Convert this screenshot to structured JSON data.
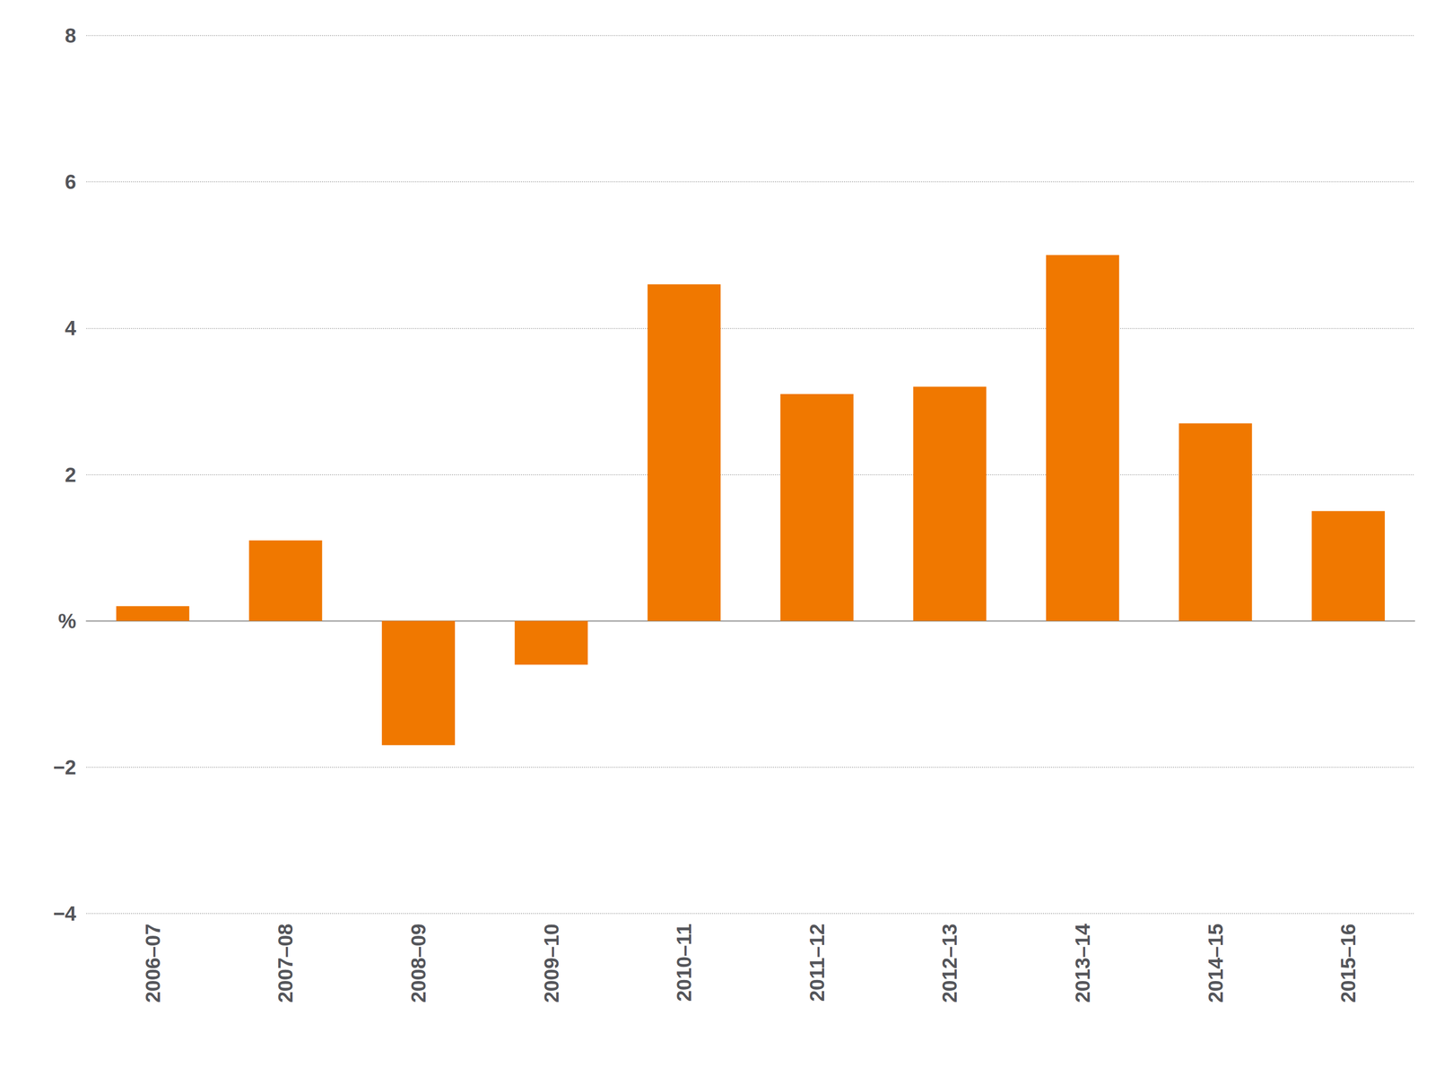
{
  "chart_data": {
    "type": "bar",
    "categories": [
      "2006–07",
      "2007–08",
      "2008–09",
      "2009–10",
      "2010–11",
      "2011–12",
      "2012–13",
      "2013–14",
      "2014–15",
      "2015–16"
    ],
    "values": [
      0.2,
      1.1,
      -1.7,
      -0.6,
      4.6,
      3.1,
      3.2,
      5.0,
      2.7,
      1.5
    ],
    "color": "#F07800",
    "ylim": [
      -4,
      8
    ],
    "yticks": [
      {
        "value": -4,
        "label": "−4"
      },
      {
        "value": -2,
        "label": "−2"
      },
      {
        "value": 0,
        "label": "%"
      },
      2,
      4,
      6,
      8
    ],
    "grid": true
  }
}
